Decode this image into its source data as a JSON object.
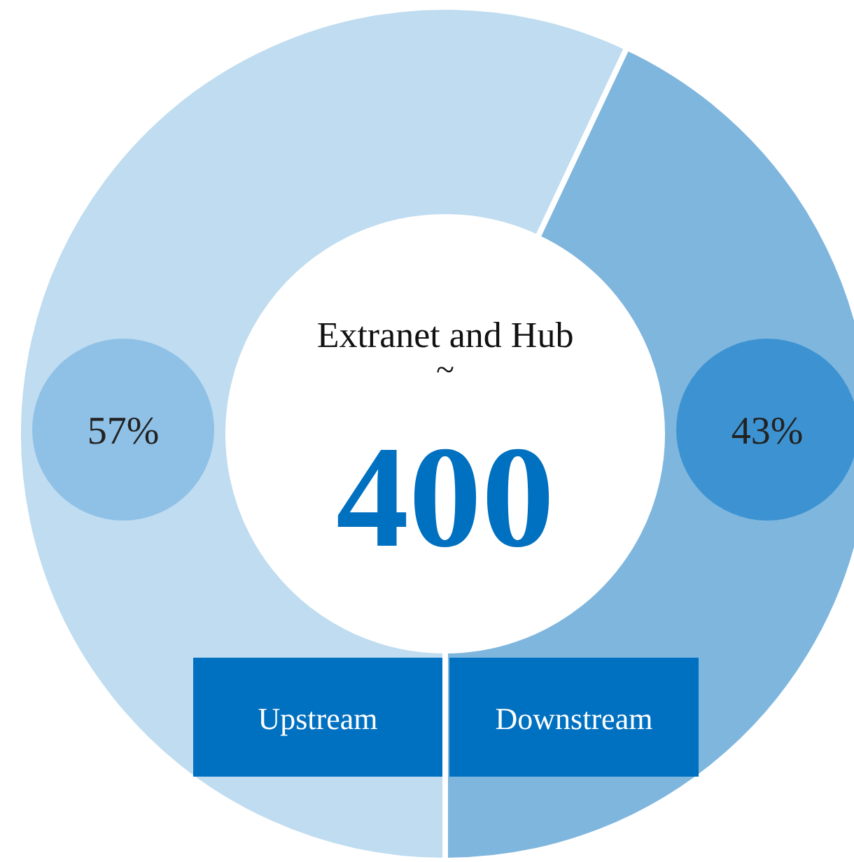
{
  "chart_data": {
    "type": "donut",
    "title": "Extranet and Hub",
    "annotations": [
      "~",
      "400"
    ],
    "categories": [
      "Upstream",
      "Downstream"
    ],
    "values": [
      57,
      43
    ],
    "value_labels": [
      "57%",
      "43%"
    ],
    "colors": [
      "#bfdcf0",
      "#7fb6de"
    ]
  }
}
